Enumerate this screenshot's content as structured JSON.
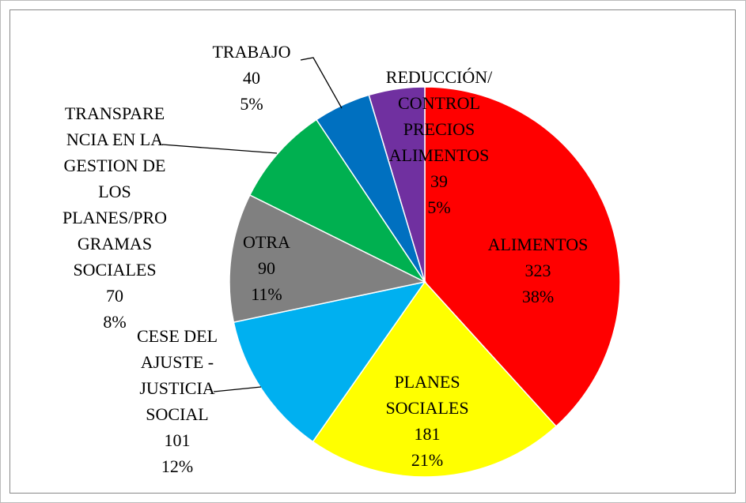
{
  "chart_data": {
    "type": "pie",
    "categories": [
      "ALIMENTOS",
      "PLANES SOCIALES",
      "CESE DEL AJUSTE - JUSTICIA SOCIAL",
      "OTRA",
      "TRANSPARENCIA EN LA GESTION DE LOS PLANES/PROGRAMAS SOCIALES",
      "TRABAJO",
      "REDUCCIÓN/CONTROL PRECIOS ALIMENTOS"
    ],
    "values": [
      323,
      181,
      101,
      90,
      70,
      40,
      39
    ],
    "percentages": [
      38,
      21,
      12,
      11,
      8,
      5,
      5
    ],
    "percentage_labels": [
      "38%",
      "21%",
      "12%",
      "11%",
      "8%",
      "5%",
      "5%"
    ],
    "colors": [
      "#ff0000",
      "#ffff00",
      "#00b0f0",
      "#808080",
      "#00b050",
      "#0070c0",
      "#7030a0"
    ]
  }
}
